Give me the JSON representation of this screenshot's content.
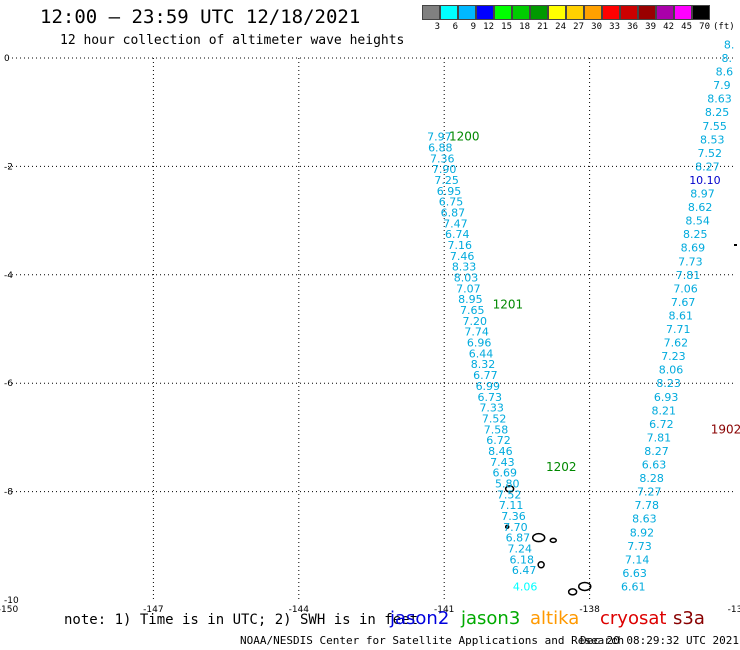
{
  "header": {
    "title": "12:00 — 23:59 UTC 12/18/2021",
    "subtitle": "12 hour collection of altimeter wave heights"
  },
  "colorbar": {
    "unit": "(ft)",
    "swatches": [
      {
        "color": "#808080",
        "label": "3"
      },
      {
        "color": "#00ffff",
        "label": "6"
      },
      {
        "color": "#00b8ff",
        "label": "9"
      },
      {
        "color": "#0000ff",
        "label": "12"
      },
      {
        "color": "#00ff00",
        "label": "15"
      },
      {
        "color": "#00cc00",
        "label": "18"
      },
      {
        "color": "#009900",
        "label": "21"
      },
      {
        "color": "#ffff00",
        "label": "24"
      },
      {
        "color": "#ffd000",
        "label": "27"
      },
      {
        "color": "#ffa000",
        "label": "30"
      },
      {
        "color": "#ff0000",
        "label": "33"
      },
      {
        "color": "#cc0000",
        "label": "36"
      },
      {
        "color": "#990000",
        "label": "39"
      },
      {
        "color": "#aa00aa",
        "label": "42"
      },
      {
        "color": "#ff00ff",
        "label": "45"
      },
      {
        "color": "#000000",
        "label": "70"
      }
    ]
  },
  "axes": {
    "lon_labels": [
      "-150",
      "-147",
      "-144",
      "-141",
      "-138",
      "-13"
    ],
    "lat_labels": [
      "0",
      "-2",
      "-4",
      "-6",
      "-8",
      "-10"
    ]
  },
  "tracks": [
    {
      "name": "pass-west",
      "color": "#00aadd",
      "points": [
        {
          "lon": -141.1,
          "lat": -1.45,
          "v": "7.97"
        },
        {
          "lon": -141.08,
          "lat": -1.65,
          "v": "6.88"
        },
        {
          "lon": -141.04,
          "lat": -1.85,
          "v": "7.36"
        },
        {
          "lon": -141.0,
          "lat": -2.05,
          "v": "7.90"
        },
        {
          "lon": -140.95,
          "lat": -2.25,
          "v": "7.25"
        },
        {
          "lon": -140.9,
          "lat": -2.45,
          "v": "6.95"
        },
        {
          "lon": -140.86,
          "lat": -2.65,
          "v": "6.75"
        },
        {
          "lon": -140.82,
          "lat": -2.85,
          "v": "6.87"
        },
        {
          "lon": -140.77,
          "lat": -3.05,
          "v": "7.47"
        },
        {
          "lon": -140.73,
          "lat": -3.25,
          "v": "6.74"
        },
        {
          "lon": -140.68,
          "lat": -3.45,
          "v": "7.16"
        },
        {
          "lon": -140.63,
          "lat": -3.65,
          "v": "7.46"
        },
        {
          "lon": -140.59,
          "lat": -3.85,
          "v": "8.33"
        },
        {
          "lon": -140.55,
          "lat": -4.05,
          "v": "8.03"
        },
        {
          "lon": -140.5,
          "lat": -4.25,
          "v": "7.07"
        },
        {
          "lon": -140.46,
          "lat": -4.45,
          "v": "8.95"
        },
        {
          "lon": -140.42,
          "lat": -4.65,
          "v": "7.65"
        },
        {
          "lon": -140.37,
          "lat": -4.85,
          "v": "7.20"
        },
        {
          "lon": -140.33,
          "lat": -5.05,
          "v": "7.74"
        },
        {
          "lon": -140.28,
          "lat": -5.25,
          "v": "6.96"
        },
        {
          "lon": -140.24,
          "lat": -5.45,
          "v": "6.44"
        },
        {
          "lon": -140.2,
          "lat": -5.65,
          "v": "8.32"
        },
        {
          "lon": -140.15,
          "lat": -5.85,
          "v": "6.77"
        },
        {
          "lon": -140.1,
          "lat": -6.05,
          "v": "6.99"
        },
        {
          "lon": -140.06,
          "lat": -6.25,
          "v": "6.73"
        },
        {
          "lon": -140.02,
          "lat": -6.45,
          "v": "7.33"
        },
        {
          "lon": -139.97,
          "lat": -6.65,
          "v": "7.52"
        },
        {
          "lon": -139.93,
          "lat": -6.85,
          "v": "7.58"
        },
        {
          "lon": -139.88,
          "lat": -7.05,
          "v": "6.72"
        },
        {
          "lon": -139.84,
          "lat": -7.25,
          "v": "8.46"
        },
        {
          "lon": -139.8,
          "lat": -7.45,
          "v": "7.43"
        },
        {
          "lon": -139.75,
          "lat": -7.65,
          "v": "6.69"
        },
        {
          "lon": -139.7,
          "lat": -7.85,
          "v": "5.80"
        },
        {
          "lon": -139.66,
          "lat": -8.05,
          "v": "7.52"
        },
        {
          "lon": -139.62,
          "lat": -8.25,
          "v": "7.11"
        },
        {
          "lon": -139.57,
          "lat": -8.45,
          "v": "7.36"
        },
        {
          "lon": -139.53,
          "lat": -8.65,
          "v": "7.70"
        },
        {
          "lon": -139.48,
          "lat": -8.85,
          "v": "6.87"
        },
        {
          "lon": -139.44,
          "lat": -9.05,
          "v": "7.24"
        },
        {
          "lon": -139.4,
          "lat": -9.25,
          "v": "6.18"
        },
        {
          "lon": -139.35,
          "lat": -9.45,
          "v": "6.47"
        },
        {
          "lon": -139.33,
          "lat": -9.75,
          "v": "4.06",
          "color": "#00ffff"
        }
      ]
    },
    {
      "name": "pass-east",
      "color": "#00aadd",
      "points": [
        {
          "lon": -137.1,
          "lat": -9.75,
          "v": "6.61"
        },
        {
          "lon": -137.07,
          "lat": -9.5,
          "v": "6.63"
        },
        {
          "lon": -137.02,
          "lat": -9.25,
          "v": "7.14"
        },
        {
          "lon": -136.97,
          "lat": -9.0,
          "v": "7.73"
        },
        {
          "lon": -136.92,
          "lat": -8.75,
          "v": "8.92"
        },
        {
          "lon": -136.87,
          "lat": -8.5,
          "v": "8.63"
        },
        {
          "lon": -136.82,
          "lat": -8.25,
          "v": "7.78"
        },
        {
          "lon": -136.77,
          "lat": -8.0,
          "v": "7.27"
        },
        {
          "lon": -136.72,
          "lat": -7.75,
          "v": "8.28"
        },
        {
          "lon": -136.67,
          "lat": -7.5,
          "v": "6.63"
        },
        {
          "lon": -136.62,
          "lat": -7.25,
          "v": "8.27"
        },
        {
          "lon": -136.57,
          "lat": -7.0,
          "v": "7.81"
        },
        {
          "lon": -136.52,
          "lat": -6.75,
          "v": "6.72"
        },
        {
          "lon": -136.47,
          "lat": -6.5,
          "v": "8.21"
        },
        {
          "lon": -136.42,
          "lat": -6.25,
          "v": "6.93"
        },
        {
          "lon": -136.37,
          "lat": -6.0,
          "v": "8.23"
        },
        {
          "lon": -136.32,
          "lat": -5.75,
          "v": "8.06"
        },
        {
          "lon": -136.27,
          "lat": -5.5,
          "v": "7.23"
        },
        {
          "lon": -136.22,
          "lat": -5.25,
          "v": "7.62"
        },
        {
          "lon": -136.17,
          "lat": -5.0,
          "v": "7.71"
        },
        {
          "lon": -136.12,
          "lat": -4.75,
          "v": "8.61"
        },
        {
          "lon": -136.07,
          "lat": -4.5,
          "v": "7.67"
        },
        {
          "lon": -136.02,
          "lat": -4.25,
          "v": "7.06"
        },
        {
          "lon": -135.97,
          "lat": -4.0,
          "v": "7.81"
        },
        {
          "lon": -135.92,
          "lat": -3.75,
          "v": "7.73"
        },
        {
          "lon": -135.87,
          "lat": -3.5,
          "v": "8.69"
        },
        {
          "lon": -135.82,
          "lat": -3.25,
          "v": "8.25"
        },
        {
          "lon": -135.77,
          "lat": -3.0,
          "v": "8.54"
        },
        {
          "lon": -135.72,
          "lat": -2.75,
          "v": "8.62"
        },
        {
          "lon": -135.67,
          "lat": -2.5,
          "v": "8.97"
        },
        {
          "lon": -135.62,
          "lat": -2.25,
          "v": "10.10",
          "color": "#0000cc"
        },
        {
          "lon": -135.57,
          "lat": -2.0,
          "v": "8.27"
        },
        {
          "lon": -135.52,
          "lat": -1.75,
          "v": "7.52"
        },
        {
          "lon": -135.47,
          "lat": -1.5,
          "v": "8.53"
        },
        {
          "lon": -135.42,
          "lat": -1.25,
          "v": "7.55"
        },
        {
          "lon": -135.37,
          "lat": -1.0,
          "v": "8.25"
        },
        {
          "lon": -135.32,
          "lat": -0.75,
          "v": "8.63"
        },
        {
          "lon": -135.27,
          "lat": -0.5,
          "v": "7.9"
        },
        {
          "lon": -135.22,
          "lat": -0.25,
          "v": "8.6"
        },
        {
          "lon": -135.17,
          "lat": 0.0,
          "v": "8."
        },
        {
          "lon": -135.12,
          "lat": 0.25,
          "v": "8."
        }
      ]
    }
  ],
  "time_labels": [
    {
      "lon": -140.9,
      "lat": -1.45,
      "text": "1200",
      "color": "#008800"
    },
    {
      "lon": -140.0,
      "lat": -4.55,
      "text": "1201",
      "color": "#008800"
    },
    {
      "lon": -138.9,
      "lat": -7.55,
      "text": "1202",
      "color": "#008800"
    },
    {
      "lon": -135.5,
      "lat": -6.85,
      "text": "1902",
      "color": "#880000"
    }
  ],
  "note": "note:  1) Time is in UTC;  2) SWH is in feet",
  "legend": [
    {
      "text": "jason2",
      "color": "#0000dd"
    },
    {
      "text": "jason3",
      "color": "#00aa00"
    },
    {
      "text": "altika",
      "color": "#ff9900"
    },
    {
      "text": "cryosat",
      "color": "#dd0000"
    },
    {
      "text": "s3a",
      "color": "#880000"
    }
  ],
  "credit": "NOAA/NESDIS Center for Satellite Applications and Research",
  "timestamp": "Dec 20 08:29:32 UTC 2021"
}
